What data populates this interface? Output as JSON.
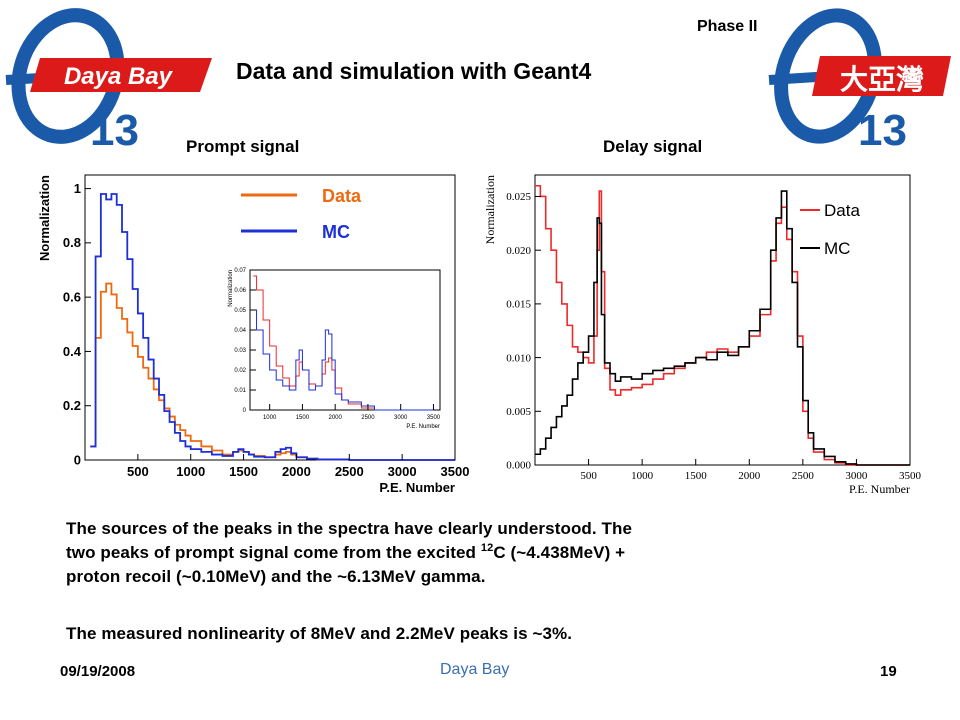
{
  "header": {
    "phase_label": "Phase II",
    "title": "Data and simulation with Geant4",
    "logo_left_text": "Daya Bay",
    "logo_right_text": "大亞灣",
    "logo_number": "13"
  },
  "captions": {
    "prompt": "Prompt signal",
    "delay": "Delay signal"
  },
  "body_text": {
    "para1_a": "The sources of the peaks in the spectra have clearly understood. The",
    "para1_b": "two peaks of prompt signal come from the excited ",
    "para1_sup": "12",
    "para1_c": "C (~4.438MeV) +",
    "para1_d": "proton recoil (~0.10MeV) and the ~6.13MeV gamma.",
    "para2": "The measured nonlinearity of 8MeV and 2.2MeV peaks is ~3%."
  },
  "footer": {
    "date": "09/19/2008",
    "center": "Daya Bay",
    "page": "19"
  },
  "colors": {
    "data_prompt": "#ee6a10",
    "mc_prompt": "#1c2fd8",
    "data_delay": "#ee2a2a",
    "mc_delay": "#000000",
    "footer_link": "#3a6fb0",
    "logo_red": "#dd1a1a",
    "logo_blue": "#1a5aa8"
  },
  "chart_data": [
    {
      "type": "line",
      "name": "prompt",
      "xlabel": "P.E. Number",
      "ylabel": "Normalization",
      "xlim": [
        0,
        3500
      ],
      "ylim": [
        0,
        1.05
      ],
      "x_ticks": [
        "500",
        "1000",
        "1500",
        "2000",
        "2500",
        "3000",
        "3500"
      ],
      "y_ticks": [
        "0",
        "0.2",
        "0.4",
        "0.6",
        "0.8",
        "1"
      ],
      "legend": [
        "Data",
        "MC"
      ],
      "series": [
        {
          "name": "Data",
          "x": [
            50,
            100,
            150,
            200,
            250,
            300,
            350,
            400,
            450,
            500,
            550,
            600,
            650,
            700,
            750,
            800,
            850,
            900,
            950,
            1000,
            1100,
            1200,
            1300,
            1400,
            1450,
            1500,
            1550,
            1600,
            1700,
            1800,
            1850,
            1900,
            1950,
            2000,
            2100,
            2200,
            2500,
            3500
          ],
          "y": [
            0.05,
            0.45,
            0.62,
            0.65,
            0.61,
            0.56,
            0.52,
            0.47,
            0.42,
            0.38,
            0.34,
            0.3,
            0.26,
            0.22,
            0.19,
            0.16,
            0.13,
            0.11,
            0.09,
            0.07,
            0.05,
            0.035,
            0.02,
            0.03,
            0.035,
            0.03,
            0.02,
            0.015,
            0.01,
            0.02,
            0.025,
            0.03,
            0.02,
            0.01,
            0.005,
            0.002,
            0.0,
            0.0
          ]
        },
        {
          "name": "MC",
          "x": [
            50,
            100,
            150,
            200,
            250,
            300,
            350,
            400,
            450,
            500,
            550,
            600,
            650,
            700,
            750,
            800,
            850,
            900,
            950,
            1000,
            1100,
            1200,
            1300,
            1400,
            1450,
            1500,
            1550,
            1600,
            1700,
            1800,
            1850,
            1900,
            1950,
            2000,
            2100,
            2200,
            2500,
            3500
          ],
          "y": [
            0.05,
            0.75,
            0.98,
            0.96,
            0.98,
            0.94,
            0.84,
            0.74,
            0.63,
            0.54,
            0.45,
            0.37,
            0.3,
            0.24,
            0.18,
            0.14,
            0.1,
            0.07,
            0.05,
            0.04,
            0.03,
            0.02,
            0.015,
            0.03,
            0.04,
            0.03,
            0.02,
            0.012,
            0.01,
            0.03,
            0.04,
            0.045,
            0.025,
            0.01,
            0.005,
            0.002,
            0.0,
            0.0
          ]
        }
      ]
    },
    {
      "type": "line",
      "name": "prompt-inset",
      "xlabel": "P.E. Number",
      "ylabel": "Normalization",
      "xlim": [
        700,
        3600
      ],
      "ylim": [
        0,
        0.07
      ],
      "x_ticks": [
        "1000",
        "1500",
        "2000",
        "2500",
        "3000",
        "3500"
      ],
      "y_ticks": [
        "0",
        "0.01",
        "0.02",
        "0.03",
        "0.04",
        "0.05",
        "0.06",
        "0.07"
      ],
      "series": [
        {
          "name": "Data",
          "x": [
            750,
            800,
            900,
            1000,
            1100,
            1200,
            1300,
            1400,
            1450,
            1500,
            1600,
            1700,
            1800,
            1850,
            1900,
            1950,
            2000,
            2100,
            2200,
            2400,
            2600,
            3000,
            3500
          ],
          "y": [
            0.067,
            0.06,
            0.045,
            0.032,
            0.022,
            0.016,
            0.012,
            0.017,
            0.024,
            0.02,
            0.013,
            0.012,
            0.018,
            0.024,
            0.026,
            0.02,
            0.011,
            0.005,
            0.003,
            0.001,
            0.0,
            0.0,
            0.0
          ]
        },
        {
          "name": "MC",
          "x": [
            750,
            800,
            900,
            1000,
            1100,
            1200,
            1300,
            1400,
            1450,
            1500,
            1600,
            1700,
            1800,
            1850,
            1900,
            1950,
            2000,
            2100,
            2200,
            2400,
            2600,
            3000,
            3500
          ],
          "y": [
            0.05,
            0.04,
            0.028,
            0.02,
            0.015,
            0.012,
            0.01,
            0.025,
            0.03,
            0.02,
            0.01,
            0.012,
            0.025,
            0.04,
            0.038,
            0.025,
            0.008,
            0.005,
            0.004,
            0.002,
            0.0,
            0.0,
            0.0
          ]
        }
      ]
    },
    {
      "type": "line",
      "name": "delay",
      "xlabel": "P.E. Number",
      "ylabel": "Normalization",
      "xlim": [
        0,
        3500
      ],
      "ylim": [
        0,
        0.027
      ],
      "x_ticks": [
        "500",
        "1000",
        "1500",
        "2000",
        "2500",
        "3000",
        "3500"
      ],
      "y_ticks": [
        "0.000",
        "0.005",
        "0.010",
        "0.015",
        "0.020",
        "0.025"
      ],
      "legend": [
        "Data",
        "MC"
      ],
      "series": [
        {
          "name": "Data",
          "x": [
            0,
            50,
            100,
            150,
            200,
            250,
            300,
            350,
            400,
            450,
            500,
            550,
            580,
            600,
            620,
            650,
            700,
            750,
            800,
            900,
            1000,
            1100,
            1200,
            1300,
            1400,
            1500,
            1600,
            1700,
            1800,
            1900,
            2000,
            2100,
            2200,
            2250,
            2300,
            2350,
            2400,
            2450,
            2500,
            2550,
            2600,
            2700,
            2800,
            2900,
            3000,
            3500
          ],
          "y": [
            0.026,
            0.025,
            0.022,
            0.02,
            0.017,
            0.015,
            0.013,
            0.011,
            0.0105,
            0.01,
            0.0095,
            0.012,
            0.02,
            0.0255,
            0.018,
            0.009,
            0.007,
            0.0065,
            0.007,
            0.0072,
            0.0075,
            0.008,
            0.0085,
            0.009,
            0.0095,
            0.01,
            0.0105,
            0.0108,
            0.0105,
            0.011,
            0.012,
            0.014,
            0.019,
            0.0225,
            0.024,
            0.021,
            0.018,
            0.012,
            0.005,
            0.0025,
            0.0012,
            0.0005,
            0.0002,
            0.0,
            0.0,
            0.0
          ]
        },
        {
          "name": "MC",
          "x": [
            0,
            50,
            100,
            150,
            200,
            250,
            300,
            350,
            400,
            450,
            500,
            550,
            580,
            600,
            620,
            650,
            700,
            750,
            800,
            900,
            1000,
            1100,
            1200,
            1300,
            1400,
            1500,
            1600,
            1700,
            1800,
            1900,
            2000,
            2100,
            2200,
            2250,
            2300,
            2350,
            2400,
            2450,
            2500,
            2550,
            2600,
            2700,
            2800,
            2900,
            3000,
            3500
          ],
          "y": [
            0.001,
            0.0015,
            0.0025,
            0.0035,
            0.0045,
            0.0055,
            0.0065,
            0.008,
            0.0095,
            0.0105,
            0.012,
            0.017,
            0.023,
            0.0225,
            0.014,
            0.0095,
            0.0085,
            0.0078,
            0.0082,
            0.008,
            0.0085,
            0.0088,
            0.009,
            0.0092,
            0.0095,
            0.01,
            0.0098,
            0.0105,
            0.0102,
            0.011,
            0.0125,
            0.0145,
            0.02,
            0.023,
            0.0255,
            0.022,
            0.017,
            0.011,
            0.006,
            0.003,
            0.0015,
            0.0008,
            0.0003,
            0.0001,
            0.0,
            0.0
          ]
        }
      ]
    }
  ]
}
